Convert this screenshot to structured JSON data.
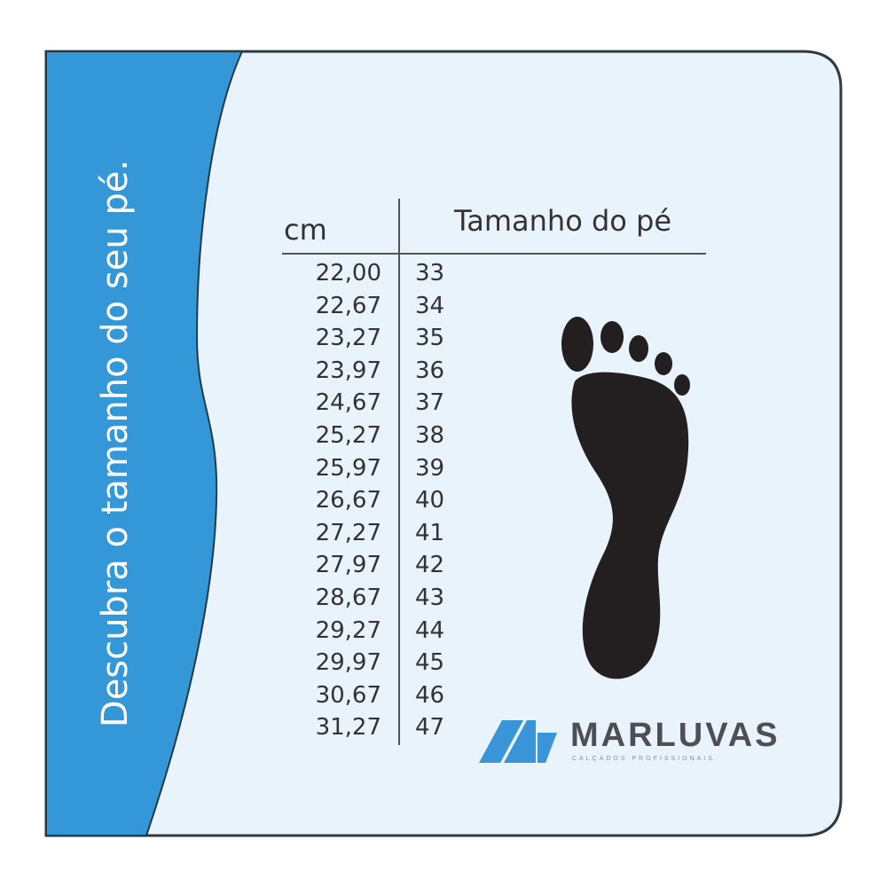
{
  "side_title": "Descubra o tamanho do seu pé.",
  "table": {
    "header_cm": "cm",
    "header_size": "Tamanho do pé",
    "rows": [
      {
        "cm": "22,00",
        "size": "33"
      },
      {
        "cm": "22,67",
        "size": "34"
      },
      {
        "cm": "23,27",
        "size": "35"
      },
      {
        "cm": "23,97",
        "size": "36"
      },
      {
        "cm": "24,67",
        "size": "37"
      },
      {
        "cm": "25,27",
        "size": "38"
      },
      {
        "cm": "25,97",
        "size": "39"
      },
      {
        "cm": "26,67",
        "size": "40"
      },
      {
        "cm": "27,27",
        "size": "41"
      },
      {
        "cm": "27,97",
        "size": "42"
      },
      {
        "cm": "28,67",
        "size": "43"
      },
      {
        "cm": "29,27",
        "size": "44"
      },
      {
        "cm": "29,97",
        "size": "45"
      },
      {
        "cm": "30,67",
        "size": "46"
      },
      {
        "cm": "31,27",
        "size": "47"
      }
    ]
  },
  "logo": {
    "name": "MARLUVAS",
    "tagline": "CALÇADOS PROFISSIONAIS"
  },
  "icons": {
    "foot": "foot-silhouette-icon"
  },
  "colors": {
    "panel_blue": "#3497d8",
    "background": "#e8f3fb",
    "text": "#333333",
    "logo_blue": "#3a94d8",
    "logo_gray": "#4d4f54"
  }
}
